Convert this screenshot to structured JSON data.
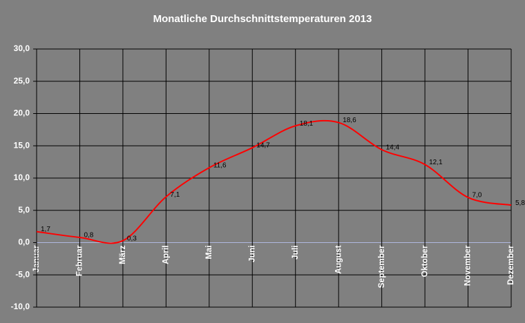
{
  "chart_data": {
    "type": "line",
    "title": "Monatliche Durchschnittstemperaturen 2013",
    "categories": [
      "Januar",
      "Februar",
      "März",
      "April",
      "Mai",
      "Juni",
      "Juli",
      "August",
      "September",
      "Oktober",
      "November",
      "Dezember"
    ],
    "values": [
      1.7,
      0.8,
      0.3,
      7.1,
      11.6,
      14.7,
      18.1,
      18.6,
      14.4,
      12.1,
      7.0,
      5.8
    ],
    "value_labels": [
      "1,7",
      "0,8",
      "0,3",
      "7,1",
      "11,6",
      "14,7",
      "18,1",
      "18,6",
      "14,4",
      "12,1",
      "7,0",
      "5,8"
    ],
    "color": "#ff0000",
    "smooth": true,
    "ylim": [
      -10,
      30
    ],
    "yticks": [
      {
        "value": -10,
        "label": "-10,0"
      },
      {
        "value": -5,
        "label": "-5,0"
      },
      {
        "value": 0,
        "label": "0,0"
      },
      {
        "value": 5,
        "label": "5,0"
      },
      {
        "value": 10,
        "label": "10,0"
      },
      {
        "value": 15,
        "label": "15,0"
      },
      {
        "value": 20,
        "label": "20,0"
      },
      {
        "value": 25,
        "label": "25,0"
      },
      {
        "value": 30,
        "label": "30,0"
      }
    ],
    "grid": true
  }
}
